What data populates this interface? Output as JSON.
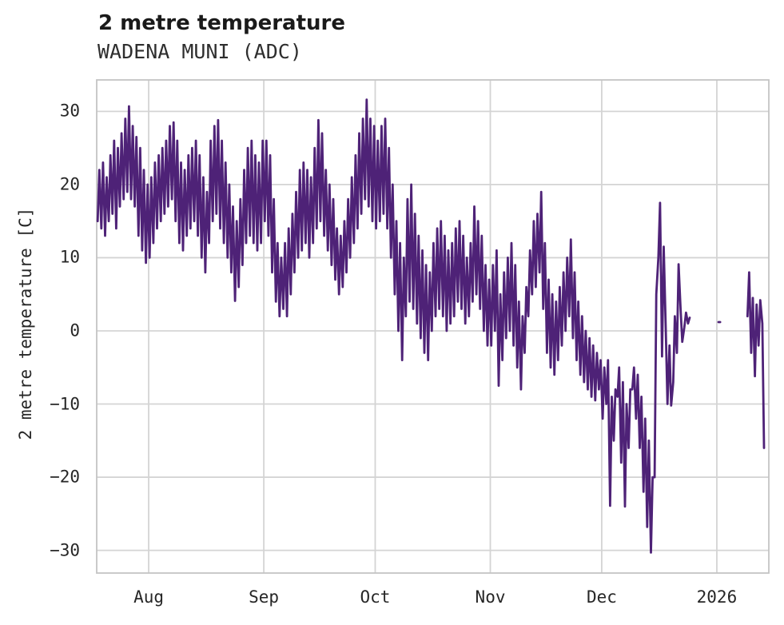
{
  "chart_data": {
    "type": "line",
    "title": "2 metre temperature",
    "subtitle": "WADENA MUNI (ADC)",
    "xlabel": "",
    "ylabel": "2 metre temperature [C]",
    "legend_position": "none",
    "grid": true,
    "line_color": "#4e2277",
    "grid_color": "#d4d4d4",
    "spine_color": "#c4c4c4",
    "x_axis": {
      "unit": "day index (0 = series start, ~mid-July 2025)",
      "lim": [
        0,
        181
      ],
      "ticks": [
        {
          "label": "Aug",
          "day": 14
        },
        {
          "label": "Sep",
          "day": 45
        },
        {
          "label": "Oct",
          "day": 75
        },
        {
          "label": "Nov",
          "day": 106
        },
        {
          "label": "Dec",
          "day": 136
        },
        {
          "label": "2026",
          "day": 167
        }
      ]
    },
    "y_axis": {
      "lim": [
        -33.1,
        34.3
      ],
      "ticks": [
        30,
        20,
        10,
        0,
        -10,
        -20,
        -30
      ]
    },
    "data_gaps": [
      "~Dec 25 to Jan 1 (isolated point near Jan 1)",
      "~Jan 2 to Jan 9"
    ],
    "series": [
      {
        "name": "2 metre temperature",
        "sampling": "two points per day: [day, early value, later value] (diurnal low/high envelope, deg C)",
        "points": [
          [
            0,
            15,
            22
          ],
          [
            1,
            14,
            23
          ],
          [
            2,
            13,
            21
          ],
          [
            3,
            15,
            24
          ],
          [
            4,
            16,
            26
          ],
          [
            5,
            14,
            25
          ],
          [
            6,
            17,
            27
          ],
          [
            7,
            18,
            29
          ],
          [
            8,
            19,
            30.7
          ],
          [
            9,
            18,
            28
          ],
          [
            10,
            17,
            26.5
          ],
          [
            11,
            13,
            25
          ],
          [
            12,
            11,
            22
          ],
          [
            13,
            9.3,
            20
          ],
          [
            14,
            10,
            21
          ],
          [
            15,
            12,
            23
          ],
          [
            16,
            14,
            24
          ],
          [
            17,
            15,
            25
          ],
          [
            18,
            16,
            26
          ],
          [
            19,
            17,
            28
          ],
          [
            20,
            18,
            28.5
          ],
          [
            21,
            15,
            26
          ],
          [
            22,
            12,
            23
          ],
          [
            23,
            11,
            22
          ],
          [
            24,
            13,
            24
          ],
          [
            25,
            14,
            25
          ],
          [
            26,
            15,
            26
          ],
          [
            27,
            13,
            24
          ],
          [
            28,
            10,
            21
          ],
          [
            29,
            8,
            19
          ],
          [
            30,
            12,
            26
          ],
          [
            31,
            15,
            28
          ],
          [
            32,
            16,
            28.8
          ],
          [
            33,
            14,
            26
          ],
          [
            34,
            12,
            23
          ],
          [
            35,
            10,
            20
          ],
          [
            36,
            8,
            17
          ],
          [
            37,
            4.1,
            15
          ],
          [
            38,
            6,
            18
          ],
          [
            39,
            9,
            22
          ],
          [
            40,
            12,
            25
          ],
          [
            41,
            13,
            26
          ],
          [
            42,
            12,
            24
          ],
          [
            43,
            11,
            23
          ],
          [
            44,
            12,
            26
          ],
          [
            45,
            15,
            26
          ],
          [
            46,
            13,
            24
          ],
          [
            47,
            8,
            18
          ],
          [
            48,
            4,
            12
          ],
          [
            49,
            2,
            10
          ],
          [
            50,
            3,
            12
          ],
          [
            51,
            2,
            14
          ],
          [
            52,
            5,
            16
          ],
          [
            53,
            8,
            19
          ],
          [
            54,
            10,
            22
          ],
          [
            55,
            11,
            23
          ],
          [
            56,
            12,
            22
          ],
          [
            57,
            10,
            21
          ],
          [
            58,
            12,
            25
          ],
          [
            59,
            14,
            28.8
          ],
          [
            60,
            15,
            27
          ],
          [
            61,
            13,
            22
          ],
          [
            62,
            11,
            20
          ],
          [
            63,
            9,
            18
          ],
          [
            64,
            7,
            14
          ],
          [
            65,
            5,
            13
          ],
          [
            66,
            6,
            15
          ],
          [
            67,
            8,
            18
          ],
          [
            68,
            10,
            21
          ],
          [
            69,
            12,
            24
          ],
          [
            70,
            14,
            27
          ],
          [
            71,
            16,
            29
          ],
          [
            72,
            18,
            31.6
          ],
          [
            73,
            17,
            29
          ],
          [
            74,
            15,
            28
          ],
          [
            75,
            14,
            26
          ],
          [
            76,
            15,
            28
          ],
          [
            77,
            16,
            29
          ],
          [
            78,
            14,
            25
          ],
          [
            79,
            10,
            20
          ],
          [
            80,
            5,
            15
          ],
          [
            81,
            0,
            12
          ],
          [
            82,
            -4,
            10
          ],
          [
            83,
            2,
            18
          ],
          [
            84,
            4,
            20
          ],
          [
            85,
            3,
            16
          ],
          [
            86,
            1,
            13
          ],
          [
            87,
            -1,
            11
          ],
          [
            88,
            -3,
            9
          ],
          [
            89,
            -4,
            8
          ],
          [
            90,
            0,
            12
          ],
          [
            91,
            2,
            14
          ],
          [
            92,
            3,
            15
          ],
          [
            93,
            2,
            13
          ],
          [
            94,
            0,
            11
          ],
          [
            95,
            1,
            12
          ],
          [
            96,
            2,
            14
          ],
          [
            97,
            4,
            15
          ],
          [
            98,
            3,
            13
          ],
          [
            99,
            1,
            10
          ],
          [
            100,
            2,
            12
          ],
          [
            101,
            4,
            17
          ],
          [
            102,
            5,
            15
          ],
          [
            103,
            3,
            13
          ],
          [
            104,
            0,
            9
          ],
          [
            105,
            -2,
            7
          ],
          [
            106,
            -2,
            9
          ],
          [
            107,
            0,
            11
          ],
          [
            108,
            -7.5,
            5
          ],
          [
            109,
            -4,
            8
          ],
          [
            110,
            -1,
            10
          ],
          [
            111,
            0,
            12
          ],
          [
            112,
            -2,
            9
          ],
          [
            113,
            -5,
            4
          ],
          [
            114,
            -8,
            2
          ],
          [
            115,
            -3,
            6
          ],
          [
            116,
            2,
            11
          ],
          [
            117,
            5,
            15
          ],
          [
            118,
            6,
            16
          ],
          [
            119,
            8,
            19
          ],
          [
            120,
            3,
            12
          ],
          [
            121,
            -3,
            7
          ],
          [
            122,
            -5,
            5
          ],
          [
            123,
            -6,
            4
          ],
          [
            124,
            -4,
            6
          ],
          [
            125,
            -2,
            8
          ],
          [
            126,
            0,
            10
          ],
          [
            127,
            2,
            12.5
          ],
          [
            128,
            -1,
            8
          ],
          [
            129,
            -4,
            4
          ],
          [
            130,
            -6,
            2
          ],
          [
            131,
            -7,
            0
          ],
          [
            132,
            -8,
            -1
          ],
          [
            133,
            -9,
            -2
          ],
          [
            134,
            -9.5,
            -3
          ],
          [
            135,
            -8,
            -4
          ],
          [
            136,
            -12,
            -5
          ],
          [
            137,
            -10,
            -4
          ],
          [
            138,
            -23.9,
            -9
          ],
          [
            139,
            -15,
            -8
          ],
          [
            140,
            -9,
            -5
          ],
          [
            141,
            -18,
            -7
          ],
          [
            142,
            -24,
            -10
          ],
          [
            143,
            -16,
            -8
          ],
          [
            144,
            -8,
            -5
          ],
          [
            145,
            -12,
            -6
          ],
          [
            146,
            -16,
            -9
          ],
          [
            147,
            -22,
            -12
          ],
          [
            148,
            -26.8,
            -15
          ],
          [
            149,
            -30.3,
            -20
          ],
          [
            150,
            -20,
            5
          ],
          [
            151,
            10,
            17.5
          ],
          [
            152,
            -3.5,
            11.5
          ],
          [
            153,
            0,
            -10
          ],
          [
            154,
            -2,
            -10.2
          ],
          [
            155,
            -7,
            2
          ],
          [
            156,
            -3,
            9.1
          ],
          [
            157,
            3,
            -1.5
          ],
          [
            158,
            0.5,
            2.5
          ],
          [
            159,
            1,
            1.8
          ],
          [
            167.2,
            1.2,
            1.2
          ],
          [
            175,
            2,
            8
          ],
          [
            176,
            -3,
            4.5
          ],
          [
            177,
            -6.2,
            3.6
          ],
          [
            178,
            -2,
            4.2
          ],
          [
            179,
            1,
            -16
          ]
        ]
      }
    ]
  }
}
